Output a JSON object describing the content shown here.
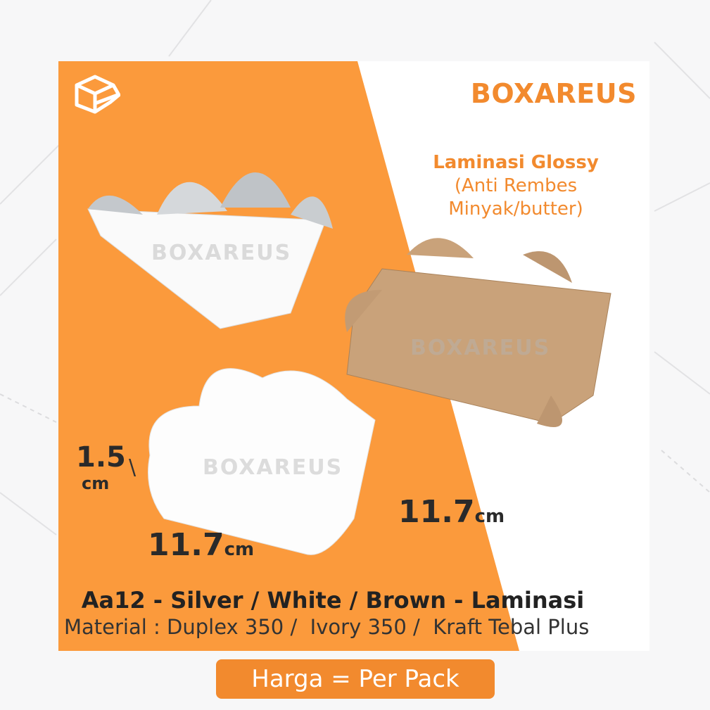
{
  "brand": "BOXAREUS",
  "watermark": "BOXAREUS",
  "lamination": {
    "line1": "Laminasi Glossy",
    "line2": "(Anti Rembes",
    "line3": "Minyak/butter)"
  },
  "dimensions": {
    "height_value": "1.5",
    "height_unit": "cm",
    "width_value": "11.7",
    "width_unit": "cm",
    "length_value": "11.7",
    "length_unit": "cm"
  },
  "product_title": "Aa12 - Silver / White / Brown - Laminasi",
  "material": "Material : Duplex 350 /  Ivory 350 /  Kraft Tebal Plus",
  "price_label": "Harga = Per Pack",
  "colors": {
    "orange": "#fb9a3c",
    "brand": "#f28a2e",
    "kraft": "#c9a27a",
    "silver": "#cfd3d6"
  }
}
